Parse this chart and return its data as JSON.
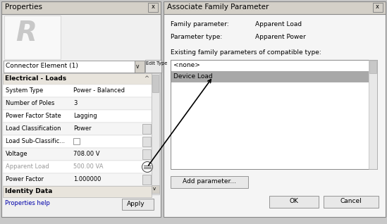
{
  "bg_color": "#d4d0c8",
  "white": "#ffffff",
  "light_gray": "#f0f0f0",
  "mid_gray": "#d4d0c8",
  "dark_gray": "#808080",
  "left_panel": {
    "title": "Properties",
    "dropdown_text": "Connector Element (1)",
    "edit_type_text": "Edit Type",
    "section_title": "Electrical - Loads",
    "rows": [
      {
        "label": "System Type",
        "value": "Power - Balanced",
        "has_side_btn": false,
        "greyed": false
      },
      {
        "label": "Number of Poles",
        "value": "3",
        "has_side_btn": false,
        "greyed": false
      },
      {
        "label": "Power Factor State",
        "value": "Lagging",
        "has_side_btn": false,
        "greyed": false
      },
      {
        "label": "Load Classification",
        "value": "Power",
        "has_side_btn": true,
        "greyed": false
      },
      {
        "label": "Load Sub-Classific...",
        "value": "",
        "has_side_btn": true,
        "greyed": false,
        "checkbox": true
      },
      {
        "label": "Voltage",
        "value": "708.00 V",
        "has_side_btn": true,
        "greyed": false
      },
      {
        "label": "Apparent Load",
        "value": "500.00 VA",
        "has_side_btn": true,
        "greyed": true,
        "circle_btn": true
      },
      {
        "label": "Power Factor",
        "value": "1.000000",
        "has_side_btn": true,
        "greyed": false
      }
    ],
    "footer_section": "Identity Data",
    "help_text": "Properties help",
    "apply_text": "Apply"
  },
  "right_panel": {
    "title": "Associate Family Parameter",
    "label1": "Family parameter:",
    "value1": "Apparent Load",
    "label2": "Parameter type:",
    "value2": "Apparent Power",
    "list_label": "Existing family parameters of compatible type:",
    "list_items": [
      "<none>",
      "Device Load"
    ],
    "selected_item": 1,
    "selected_color": "#a8a8a8",
    "add_btn": "Add parameter...",
    "ok_btn": "OK",
    "cancel_btn": "Cancel"
  }
}
